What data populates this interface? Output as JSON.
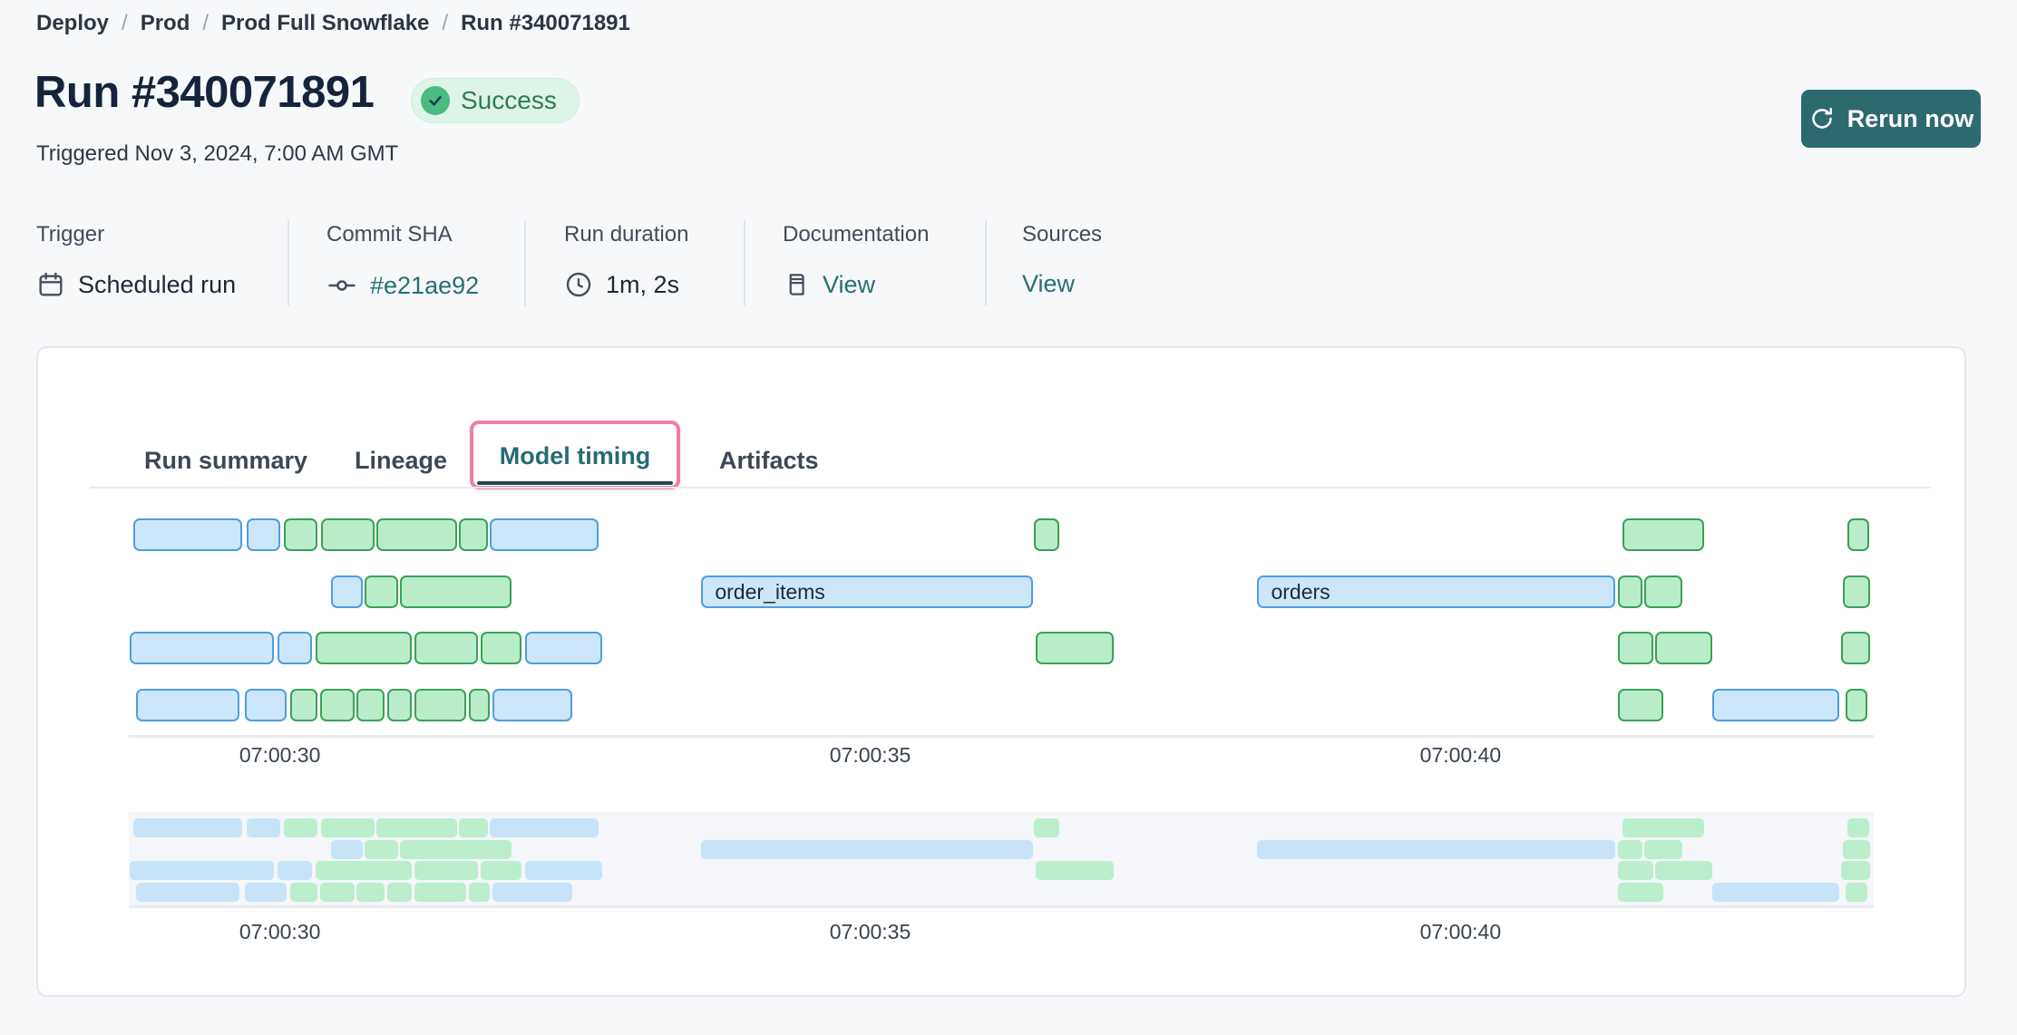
{
  "breadcrumb": {
    "items": [
      "Deploy",
      "Prod",
      "Prod Full Snowflake",
      "Run #340071891"
    ],
    "separator": "/"
  },
  "header": {
    "title": "Run #340071891",
    "status_badge": "Success",
    "status_icon": "check-icon",
    "triggered": "Triggered Nov 3, 2024, 7:00 AM GMT",
    "rerun_button": "Rerun now",
    "rerun_icon": "refresh-icon"
  },
  "meta": {
    "columns": [
      {
        "label": "Trigger",
        "value": "Scheduled run",
        "icon": "calendar-icon",
        "is_link": false
      },
      {
        "label": "Commit SHA",
        "value": "#e21ae92",
        "icon": "commit-icon",
        "is_link": true
      },
      {
        "label": "Run duration",
        "value": "1m, 2s",
        "icon": "clock-icon",
        "is_link": false
      },
      {
        "label": "Documentation",
        "value": "View",
        "icon": "document-icon",
        "is_link": true
      },
      {
        "label": "Sources",
        "value": "View",
        "icon": null,
        "is_link": true
      }
    ]
  },
  "tabs": [
    {
      "label": "Run summary",
      "active": false,
      "highlighted": false
    },
    {
      "label": "Lineage",
      "active": false,
      "highlighted": false
    },
    {
      "label": "Model timing",
      "active": true,
      "highlighted": true
    },
    {
      "label": "Artifacts",
      "active": false,
      "highlighted": false
    }
  ],
  "colors": {
    "page_background": "#f7f8fa",
    "accent_teal_link": "#26706f",
    "rerun_button_teal": "#2c6a6e",
    "highlight_pink": "#ef7cac",
    "badge_background": "#def4e8",
    "badge_text_green": "#2e7d53",
    "badge_circle_green": "#4bba83",
    "bar_blue_fill": "#cde7fa",
    "bar_blue_border": "#4f9de2",
    "bar_green_fill": "#b9edca",
    "bar_green_border": "#3ba155",
    "minimap_blue": "#c7e3f8",
    "minimap_green": "#baeecd",
    "minimap_background": "#f4f6f9"
  },
  "chart_data": {
    "type": "gantt",
    "title": "Model timing",
    "time_unit": "seconds after 07:00:00 GMT",
    "axis": {
      "min_seconds": 28.72,
      "max_seconds": 43.5,
      "ticks": [
        {
          "seconds": 30,
          "label": "07:00:30"
        },
        {
          "seconds": 35,
          "label": "07:00:35"
        },
        {
          "seconds": 40,
          "label": "07:00:40"
        }
      ]
    },
    "rows": [
      [
        {
          "start": 28.76,
          "end": 29.68,
          "color": "blue"
        },
        {
          "start": 29.72,
          "end": 30.0,
          "color": "blue"
        },
        {
          "start": 30.03,
          "end": 30.32,
          "color": "green"
        },
        {
          "start": 30.35,
          "end": 30.8,
          "color": "green"
        },
        {
          "start": 30.82,
          "end": 31.5,
          "color": "green"
        },
        {
          "start": 31.52,
          "end": 31.76,
          "color": "green"
        },
        {
          "start": 31.78,
          "end": 32.7,
          "color": "blue"
        },
        {
          "start": 36.39,
          "end": 36.6,
          "color": "green"
        },
        {
          "start": 41.37,
          "end": 42.06,
          "color": "green"
        },
        {
          "start": 43.28,
          "end": 43.46,
          "color": "green"
        }
      ],
      [
        {
          "start": 30.43,
          "end": 30.7,
          "color": "blue"
        },
        {
          "start": 30.72,
          "end": 31.0,
          "color": "green"
        },
        {
          "start": 31.02,
          "end": 31.96,
          "color": "green"
        },
        {
          "start": 33.57,
          "end": 36.38,
          "color": "blue",
          "label": "order_items"
        },
        {
          "start": 38.28,
          "end": 41.31,
          "color": "blue",
          "label": "orders"
        },
        {
          "start": 41.33,
          "end": 41.54,
          "color": "green"
        },
        {
          "start": 41.56,
          "end": 41.88,
          "color": "green"
        },
        {
          "start": 43.24,
          "end": 43.47,
          "color": "green"
        }
      ],
      [
        {
          "start": 28.73,
          "end": 29.95,
          "color": "blue"
        },
        {
          "start": 29.98,
          "end": 30.27,
          "color": "blue"
        },
        {
          "start": 30.3,
          "end": 31.12,
          "color": "green"
        },
        {
          "start": 31.14,
          "end": 31.68,
          "color": "green"
        },
        {
          "start": 31.7,
          "end": 32.05,
          "color": "green"
        },
        {
          "start": 32.08,
          "end": 32.73,
          "color": "blue"
        },
        {
          "start": 36.4,
          "end": 37.06,
          "color": "green"
        },
        {
          "start": 41.33,
          "end": 41.63,
          "color": "green"
        },
        {
          "start": 41.65,
          "end": 42.13,
          "color": "green"
        },
        {
          "start": 43.22,
          "end": 43.47,
          "color": "green"
        }
      ],
      [
        {
          "start": 28.78,
          "end": 29.66,
          "color": "blue"
        },
        {
          "start": 29.7,
          "end": 30.06,
          "color": "blue"
        },
        {
          "start": 30.09,
          "end": 30.32,
          "color": "green"
        },
        {
          "start": 30.34,
          "end": 30.63,
          "color": "green"
        },
        {
          "start": 30.65,
          "end": 30.89,
          "color": "green"
        },
        {
          "start": 30.91,
          "end": 31.12,
          "color": "green"
        },
        {
          "start": 31.14,
          "end": 31.58,
          "color": "green"
        },
        {
          "start": 31.6,
          "end": 31.78,
          "color": "green"
        },
        {
          "start": 31.8,
          "end": 32.48,
          "color": "blue"
        },
        {
          "start": 41.33,
          "end": 41.72,
          "color": "green"
        },
        {
          "start": 42.13,
          "end": 43.21,
          "color": "blue"
        },
        {
          "start": 43.26,
          "end": 43.45,
          "color": "green"
        }
      ]
    ],
    "minimap_mirrors_rows": true,
    "layout": {
      "grid": false,
      "legend": false
    }
  }
}
